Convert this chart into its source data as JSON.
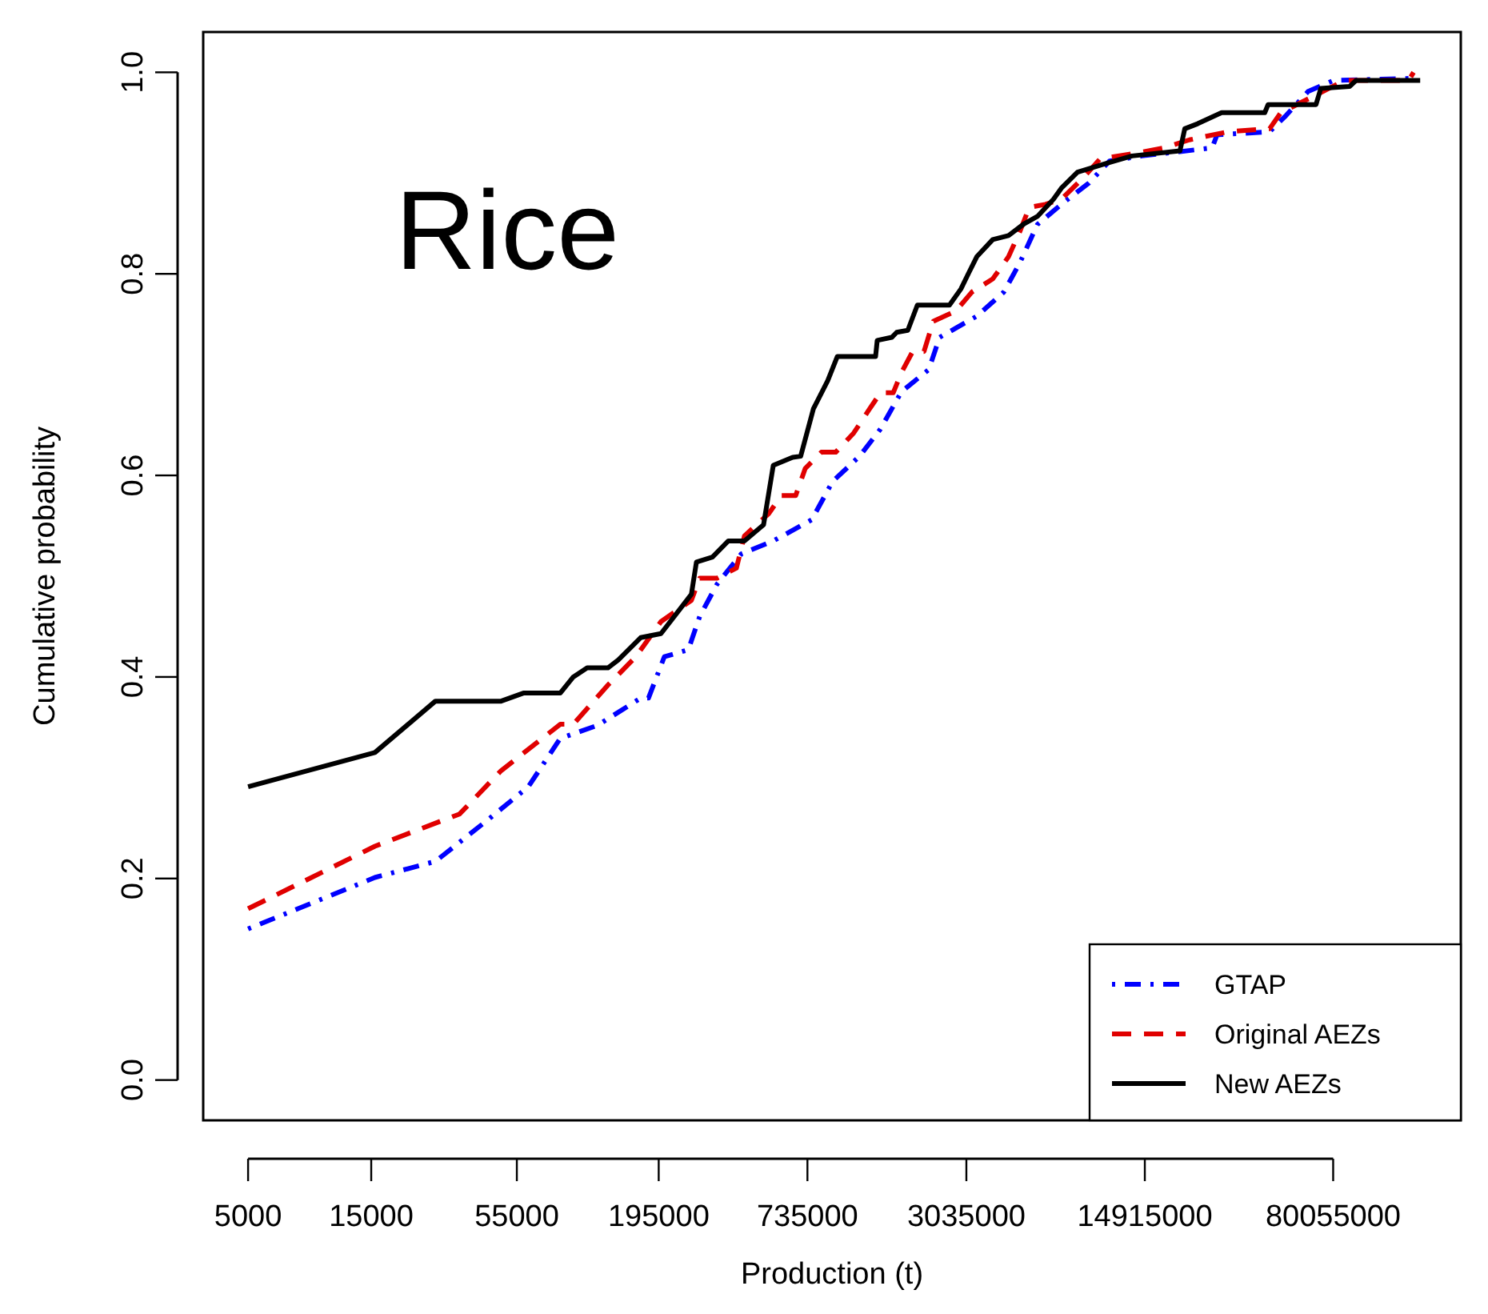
{
  "chart_data": {
    "type": "line",
    "xlabel": "Production (t)",
    "ylabel": "Cumulative probability",
    "annotations": [
      "Rice"
    ],
    "log": "x",
    "xlim": [
      3350,
      250000000
    ],
    "ylim": [
      -0.04,
      1.04
    ],
    "xticks": [
      5000,
      15000,
      55000,
      195000,
      735000,
      3035000,
      14915000,
      80055000
    ],
    "yticks": [
      {
        "value": 0,
        "label": "0.0"
      },
      {
        "value": 0.2,
        "label": "0.2"
      },
      {
        "value": 0.4,
        "label": "0.4"
      },
      {
        "value": 0.6,
        "label": "0.6"
      },
      {
        "value": 0.8,
        "label": "0.8"
      },
      {
        "value": 1,
        "label": "1.0"
      }
    ],
    "grid": false,
    "legend": "bottom right",
    "series": [
      {
        "name": "GTAP",
        "color": "#0000ff",
        "line_style": "dotted",
        "x": [
          5000,
          15500,
          26600,
          43800,
          60900,
          81000,
          113000,
          166000,
          178000,
          205000,
          254000,
          281000,
          328000,
          407000,
          542000,
          764000,
          920000,
          1170000,
          1410000,
          1700000,
          2170000,
          2390000,
          3330000,
          4240000,
          4890000,
          5720000,
          7080000,
          9040000,
          10900000,
          14500000,
          27200000,
          28400000,
          45400000,
          52500000,
          64000000,
          80600000,
          164000000
        ],
        "values": [
          0.15,
          0.201,
          0.217,
          0.261,
          0.291,
          0.339,
          0.352,
          0.379,
          0.379,
          0.42,
          0.427,
          0.46,
          0.492,
          0.522,
          0.535,
          0.556,
          0.594,
          0.619,
          0.646,
          0.683,
          0.705,
          0.737,
          0.758,
          0.782,
          0.811,
          0.849,
          0.869,
          0.89,
          0.912,
          0.917,
          0.925,
          0.938,
          0.941,
          0.957,
          0.981,
          0.992,
          0.994
        ]
      },
      {
        "name": "Original AEZs",
        "color": "#e00000",
        "line_style": "dashed",
        "x": [
          5000,
          15500,
          33000,
          47800,
          81000,
          91000,
          124000,
          159000,
          199000,
          261000,
          281000,
          328000,
          390000,
          419000,
          520000,
          582000,
          662000,
          721000,
          832000,
          946000,
          1110000,
          1280000,
          1410000,
          1580000,
          1700000,
          1880000,
          2080000,
          2260000,
          2760000,
          3190000,
          3840000,
          4420000,
          4890000,
          5320000,
          6140000,
          7080000,
          8660000,
          9990000,
          13900000,
          17700000,
          22200000,
          31300000,
          45400000,
          50200000,
          66800000,
          88800000,
          157000000,
          164000000
        ],
        "values": [
          0.17,
          0.232,
          0.264,
          0.307,
          0.353,
          0.353,
          0.392,
          0.42,
          0.455,
          0.476,
          0.498,
          0.498,
          0.508,
          0.54,
          0.562,
          0.58,
          0.58,
          0.607,
          0.623,
          0.623,
          0.642,
          0.666,
          0.682,
          0.682,
          0.702,
          0.723,
          0.723,
          0.753,
          0.763,
          0.782,
          0.795,
          0.817,
          0.842,
          0.866,
          0.869,
          0.874,
          0.896,
          0.914,
          0.92,
          0.925,
          0.933,
          0.941,
          0.944,
          0.96,
          0.976,
          0.992,
          0.992,
          1.0
        ]
      },
      {
        "name": "New AEZs",
        "color": "#000000",
        "line_style": "solid",
        "x": [
          5000,
          15500,
          26600,
          47800,
          58300,
          81000,
          91000,
          103000,
          124000,
          136000,
          166000,
          199000,
          261000,
          273000,
          315000,
          363000,
          419000,
          497000,
          542000,
          644000,
          692000,
          775000,
          881000,
          960000,
          1350000,
          1370000,
          1560000,
          1630000,
          1800000,
          1960000,
          2610000,
          2890000,
          3100000,
          3330000,
          3840000,
          4420000,
          5100000,
          5720000,
          6600000,
          7080000,
          8180000,
          10400000,
          13300000,
          20400000,
          21300000,
          23900000,
          29600000,
          43500000,
          44800000,
          68700000,
          71700000,
          92700000,
          98200000,
          174000000
        ],
        "values": [
          0.291,
          0.325,
          0.376,
          0.376,
          0.384,
          0.384,
          0.4,
          0.409,
          0.409,
          0.417,
          0.439,
          0.443,
          0.482,
          0.514,
          0.519,
          0.535,
          0.535,
          0.551,
          0.61,
          0.618,
          0.619,
          0.666,
          0.694,
          0.718,
          0.718,
          0.734,
          0.737,
          0.742,
          0.744,
          0.769,
          0.769,
          0.785,
          0.801,
          0.817,
          0.834,
          0.838,
          0.85,
          0.857,
          0.874,
          0.885,
          0.901,
          0.909,
          0.917,
          0.922,
          0.944,
          0.949,
          0.96,
          0.96,
          0.968,
          0.968,
          0.984,
          0.986,
          0.992,
          0.992
        ]
      }
    ]
  }
}
